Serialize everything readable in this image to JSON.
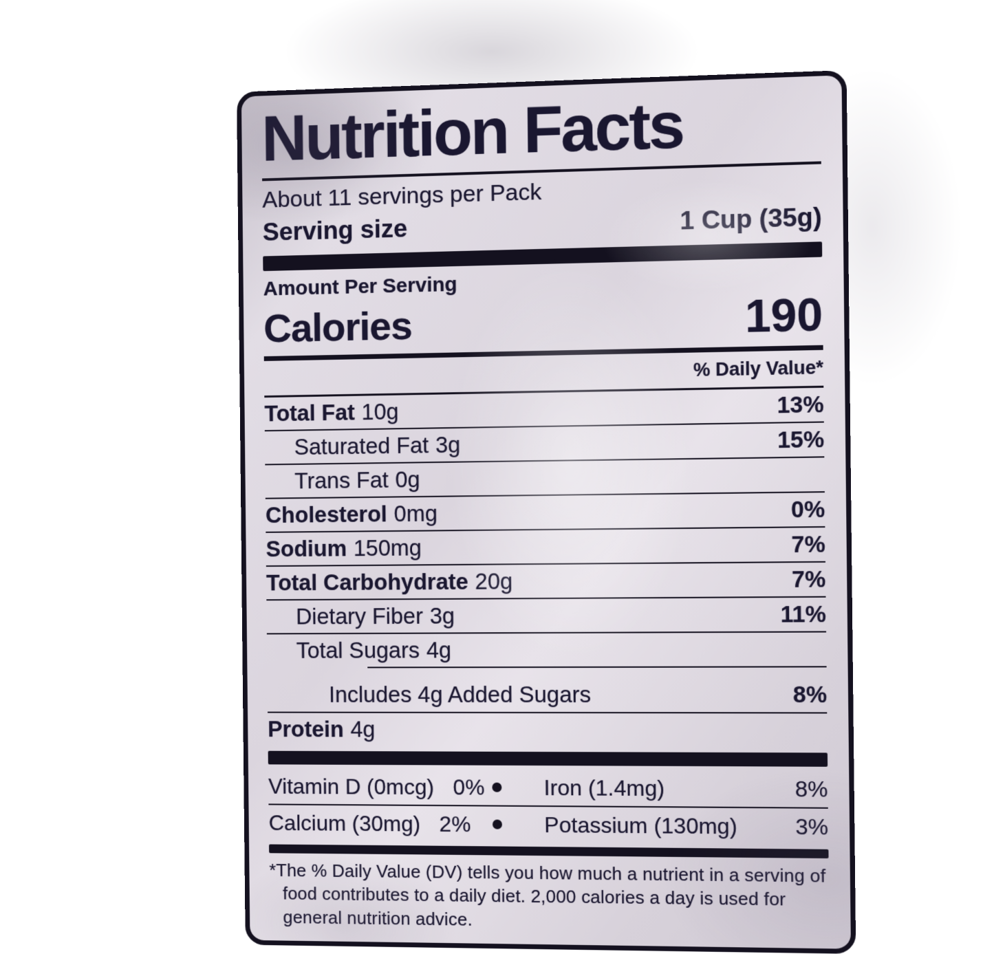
{
  "colors": {
    "ink": "#1a1730",
    "label_bg": "#dcd6df",
    "page_bg": "#ffffff"
  },
  "label": {
    "title": "Nutrition Facts",
    "servings_per_pack": "About 11 servings per Pack",
    "serving_size_label": "Serving size",
    "serving_size_value": "1 Cup (35g)",
    "amount_per_serving": "Amount Per Serving",
    "calories_label": "Calories",
    "calories_value": "190",
    "daily_value_header": "% Daily Value*",
    "rows": [
      {
        "name": "Total Fat",
        "amount": "10g",
        "dv": "13%"
      },
      {
        "name": "Saturated Fat",
        "amount": "3g",
        "dv": "15%"
      },
      {
        "name": "Trans Fat",
        "amount": "0g",
        "dv": ""
      },
      {
        "name": "Cholesterol",
        "amount": "0mg",
        "dv": "0%"
      },
      {
        "name": "Sodium",
        "amount": "150mg",
        "dv": "7%"
      },
      {
        "name": "Total Carbohydrate",
        "amount": "20g",
        "dv": "7%"
      },
      {
        "name": "Dietary Fiber",
        "amount": "3g",
        "dv": "11%"
      },
      {
        "name": "Total Sugars",
        "amount": "4g",
        "dv": ""
      },
      {
        "name": "Includes 4g Added Sugars",
        "amount": "",
        "dv": "8%"
      },
      {
        "name": "Protein",
        "amount": "4g",
        "dv": ""
      }
    ],
    "micronutrients": [
      {
        "left": "Vitamin D (0mcg)",
        "left_dv": "0%",
        "right": "Iron (1.4mg)",
        "right_dv": "8%"
      },
      {
        "left": "Calcium (30mg)",
        "left_dv": "2%",
        "right": "Potassium (130mg)",
        "right_dv": "3%"
      }
    ],
    "footnote": "*The % Daily Value (DV) tells you how much a nutrient in a serving of food contributes to a daily diet. 2,000 calories a day is used for general nutrition advice."
  }
}
